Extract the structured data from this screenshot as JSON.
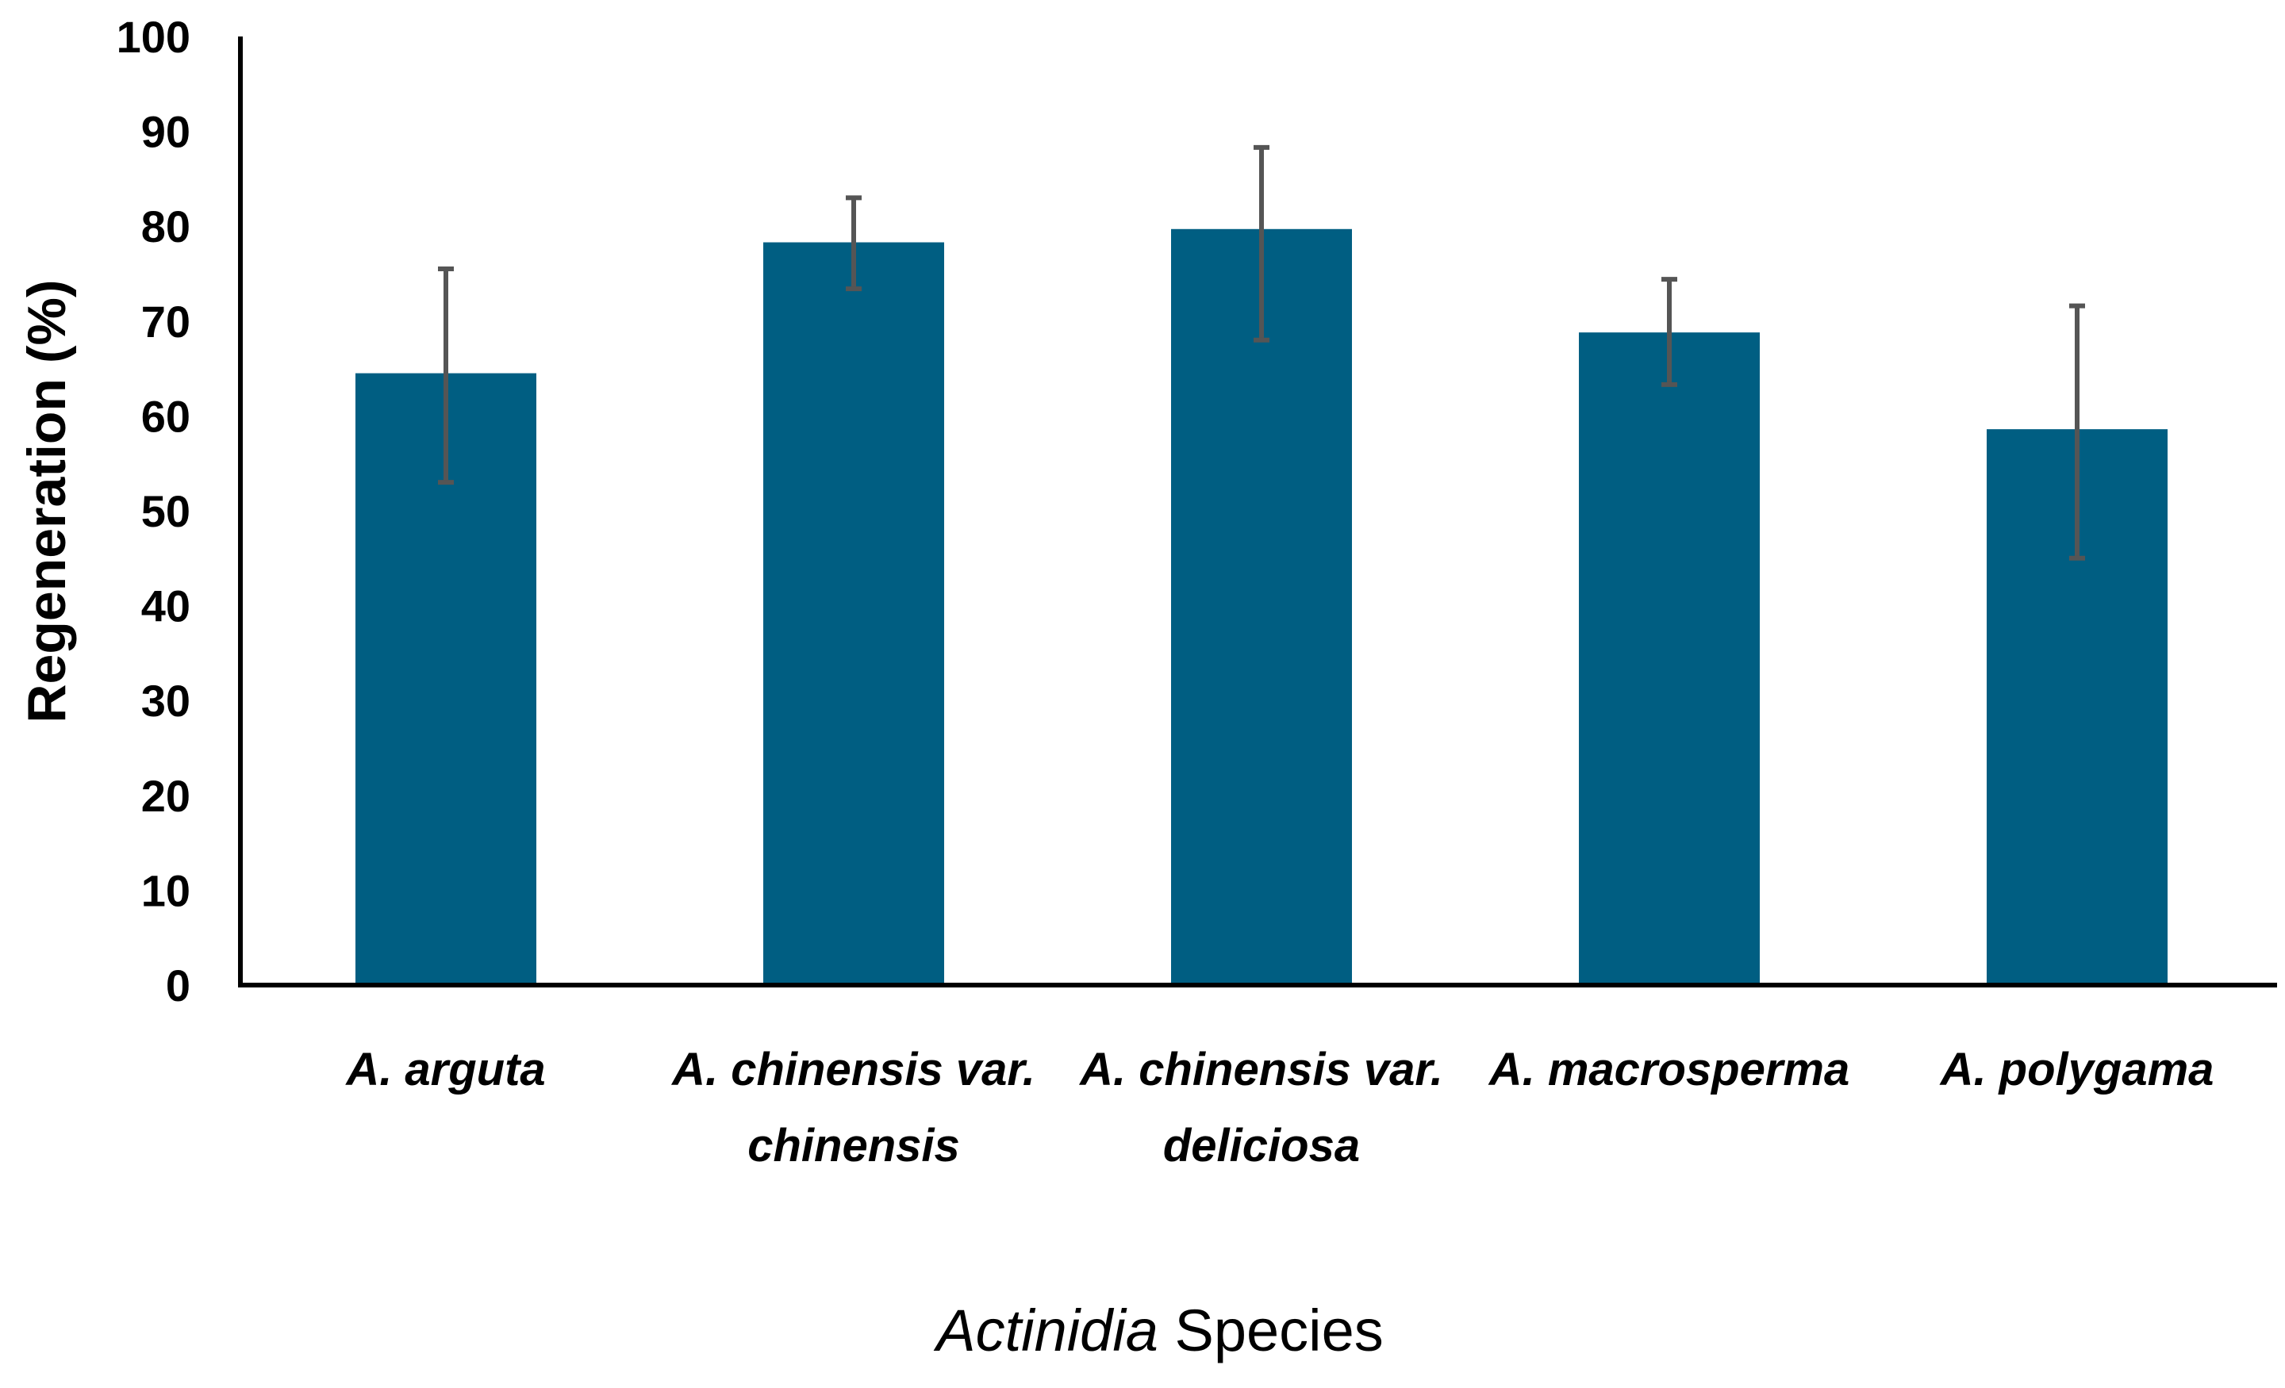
{
  "chart_data": {
    "type": "bar",
    "title": "",
    "categories": [
      [
        "A. arguta"
      ],
      [
        "A. chinensis var.",
        "chinensis"
      ],
      [
        "A. chinensis var.",
        "deliciosa"
      ],
      [
        "A. macrosperma"
      ],
      [
        "A. polygama"
      ]
    ],
    "series": [
      {
        "name": "Regeneration",
        "values": [
          64.5,
          78.3,
          79.7,
          68.8,
          58.6
        ],
        "error_plus": [
          11.0,
          4.7,
          8.6,
          5.6,
          13.0
        ],
        "error_minus": [
          11.5,
          4.9,
          11.7,
          5.5,
          13.6
        ],
        "color": "#005e82"
      }
    ],
    "xlabel_italic": "Actinidia",
    "xlabel_rest": " Species",
    "ylabel": "Regeneration (%)",
    "ylim": [
      0,
      100
    ],
    "yticks": [
      0,
      10,
      20,
      30,
      40,
      50,
      60,
      70,
      80,
      90,
      100
    ],
    "grid": false,
    "legend": "none",
    "errorbar_color": "#555555"
  }
}
